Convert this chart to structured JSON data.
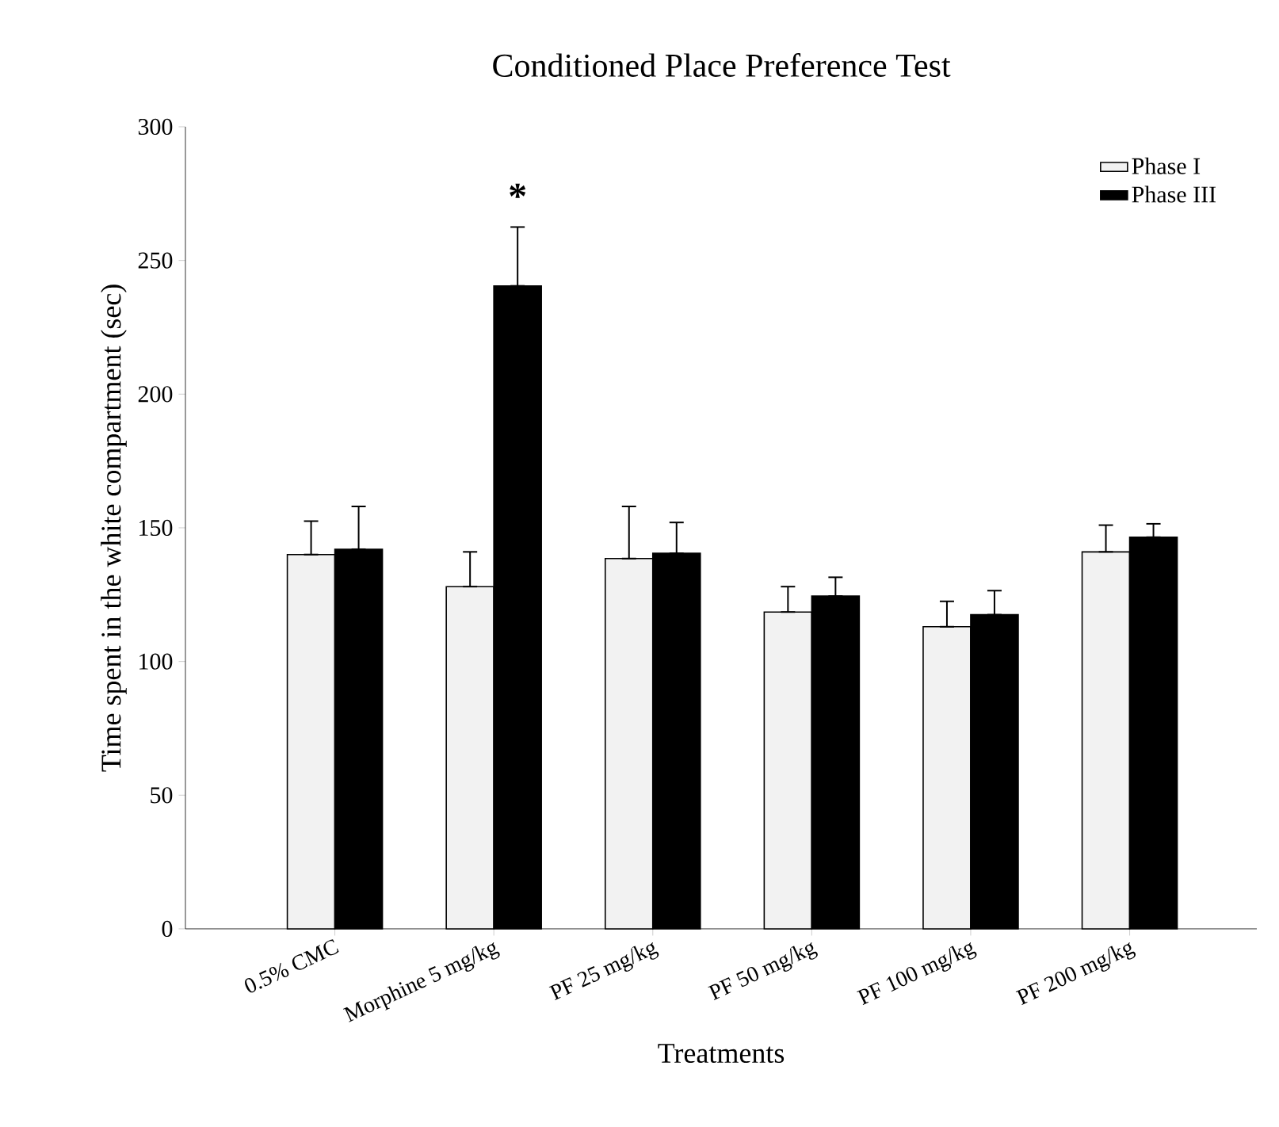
{
  "chart_data": {
    "type": "bar",
    "title": "Conditioned Place Preference Test",
    "xlabel": "Treatments",
    "ylabel": "Time spent in the white compartment (sec)",
    "categories": [
      "0.5% CMC",
      "Morphine 5 mg/kg",
      "PF 25 mg/kg",
      "PF 50 mg/kg",
      "PF 100 mg/kg",
      "PF 200 mg/kg"
    ],
    "series": [
      {
        "name": "Phase I",
        "color": "#f2f2f2",
        "values": [
          140,
          128,
          138.5,
          118.5,
          113,
          141
        ],
        "errors": [
          [
            140,
            152.5
          ],
          [
            128,
            141
          ],
          [
            138.5,
            158
          ],
          [
            118.5,
            128
          ],
          [
            113,
            122.5
          ],
          [
            141,
            151
          ]
        ]
      },
      {
        "name": "Phase III",
        "color": "#000000",
        "values": [
          142,
          240.5,
          140.5,
          124.5,
          117.5,
          146.5
        ],
        "errors": [
          [
            142,
            158
          ],
          [
            240.5,
            262.5
          ],
          [
            140.5,
            152
          ],
          [
            124.5,
            131.5
          ],
          [
            117.5,
            126.5
          ],
          [
            146.5,
            151.5
          ]
        ]
      }
    ],
    "ylim": [
      0,
      300
    ],
    "yticks": [
      0,
      50,
      100,
      150,
      200,
      250,
      300
    ],
    "annotations": [
      "*"
    ],
    "legend": "top right",
    "grid": false
  }
}
